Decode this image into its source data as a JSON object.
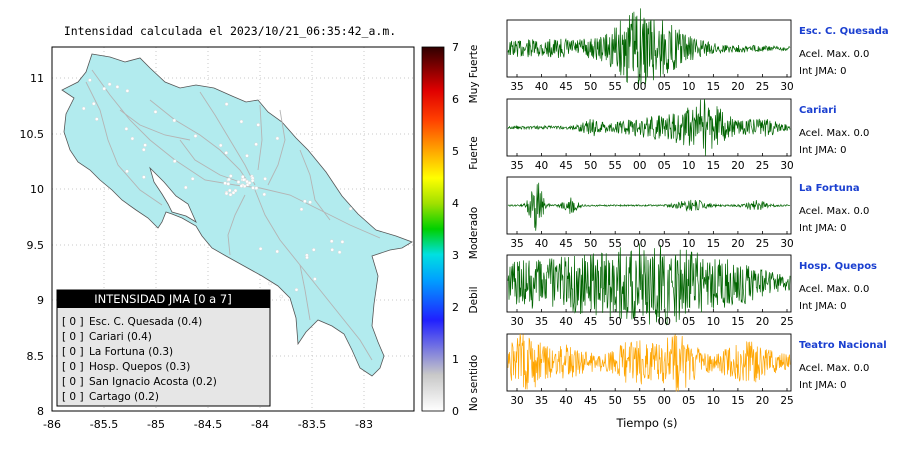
{
  "map": {
    "title": "Intensidad calculada el 2023/10/21_06:35:42_a.m.",
    "x_ticks": [
      "-86",
      "-85.5",
      "-85",
      "-84.5",
      "-84",
      "-83.5",
      "-83"
    ],
    "y_ticks": [
      "11",
      "10.5",
      "10",
      "9.5",
      "9",
      "8.5",
      "8"
    ],
    "land_color": "#b2ebee",
    "colors": {
      "ocean": "#ffffff",
      "road": "#b4b4b4",
      "station": "#ffffff"
    }
  },
  "colorbar": {
    "ticks": [
      "0",
      "1",
      "2",
      "3",
      "4",
      "5",
      "6",
      "7"
    ],
    "categories": [
      "No sentido",
      "Debil",
      "Moderado",
      "Fuerte",
      "Muy Fuerte"
    ]
  },
  "legend": {
    "title": "INTENSIDAD JMA [0 a 7]",
    "items": [
      {
        "badge": "[ 0 ]",
        "label": "Esc. C. Quesada (0.4)"
      },
      {
        "badge": "[ 0 ]",
        "label": "Cariari (0.4)"
      },
      {
        "badge": "[ 0 ]",
        "label": "La Fortuna (0.3)"
      },
      {
        "badge": "[ 0 ]",
        "label": "Hosp. Quepos (0.3)"
      },
      {
        "badge": "[ 0 ]",
        "label": "San Ignacio Acosta (0.2)"
      },
      {
        "badge": "[ 0 ]",
        "label": "Cartago (0.2)"
      }
    ]
  },
  "traces": [
    {
      "station": "Esc. C. Quesada",
      "accel": "Acel. Max. 0.0",
      "jma": "Int JMA: 0",
      "ticks": [
        "35",
        "40",
        "45",
        "50",
        "55",
        "00",
        "05",
        "10",
        "15",
        "20",
        "25",
        "30"
      ],
      "color": "#006400"
    },
    {
      "station": "Cariari",
      "accel": "Acel. Max. 0.0",
      "jma": "Int JMA: 0",
      "ticks": [
        "35",
        "40",
        "45",
        "50",
        "55",
        "00",
        "05",
        "10",
        "15",
        "20",
        "25",
        "30"
      ],
      "color": "#006400"
    },
    {
      "station": "La Fortuna",
      "accel": "Acel. Max. 0.0",
      "jma": "Int JMA: 0",
      "ticks": [
        "35",
        "40",
        "45",
        "50",
        "55",
        "00",
        "05",
        "10",
        "15",
        "20",
        "25",
        "30"
      ],
      "color": "#006400"
    },
    {
      "station": "Hosp. Quepos",
      "accel": "Acel. Max. 0.0",
      "jma": "Int JMA: 0",
      "ticks": [
        "30",
        "35",
        "40",
        "45",
        "50",
        "55",
        "00",
        "05",
        "10",
        "15",
        "20",
        "25"
      ],
      "color": "#006400"
    },
    {
      "station": "Teatro Nacional",
      "accel": "Acel. Max. 0.0",
      "jma": "Int JMA: 0",
      "ticks": [
        "30",
        "35",
        "40",
        "45",
        "50",
        "55",
        "00",
        "05",
        "10",
        "15",
        "20",
        "25"
      ],
      "color": "#ffa500"
    }
  ],
  "xlabel": "Tiempo (s)",
  "chart_data": [
    {
      "type": "scatter",
      "title": "Intensidad calculada el 2023/10/21_06:35:42_a.m.",
      "xlim": [
        -86,
        -82.5
      ],
      "ylim": [
        8,
        11.3
      ],
      "x_ticks": [
        -86,
        -85.5,
        -85,
        -84.5,
        -84,
        -83.5,
        -83
      ],
      "y_ticks": [
        8,
        8.5,
        9,
        9.5,
        10,
        10.5,
        11
      ]
    },
    {
      "type": "line",
      "series": [
        {
          "name": "Esc. C. Quesada",
          "peak_at_tick": "00"
        },
        {
          "name": "Cariari",
          "peak_at_tick": "15"
        },
        {
          "name": "La Fortuna",
          "peak_at_tick": "40"
        },
        {
          "name": "Hosp. Quepos",
          "peak_at_tick": "05"
        },
        {
          "name": "Teatro Nacional",
          "peak_at_tick": "35"
        }
      ]
    }
  ]
}
